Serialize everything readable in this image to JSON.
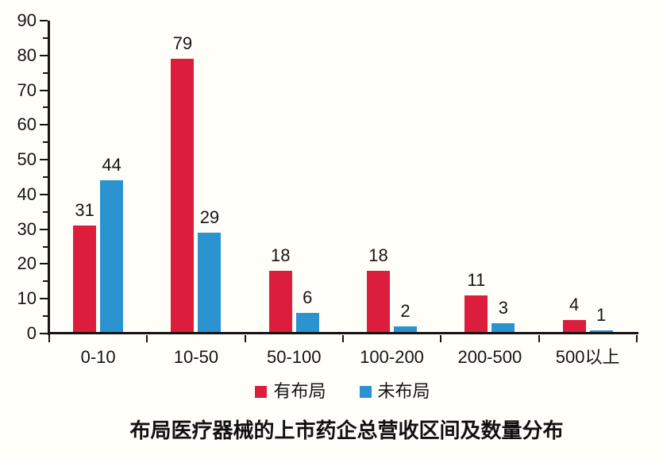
{
  "background": "#fffef9",
  "colors": {
    "axis": "#141414",
    "text": "#141414",
    "series_red": "#dc1e3c",
    "series_blue": "#2b94d0"
  },
  "chart_data": {
    "type": "bar",
    "title": "布局医疗器械的上市药企总营收区间及数量分布",
    "categories": [
      "0-10",
      "10-50",
      "50-100",
      "100-200",
      "200-500",
      "500以上"
    ],
    "series": [
      {
        "name": "有布局",
        "color": "#dc1e3c",
        "values": [
          31,
          79,
          18,
          18,
          11,
          4
        ]
      },
      {
        "name": "未布局",
        "color": "#2b94d0",
        "values": [
          44,
          29,
          6,
          2,
          3,
          1
        ]
      }
    ],
    "xlabel": "",
    "ylabel": "",
    "ylim": [
      0,
      90
    ],
    "y_major_step": 10,
    "y_minor_step": 5,
    "grid": false,
    "legend_position": "bottom",
    "bar_value_labels": true
  }
}
